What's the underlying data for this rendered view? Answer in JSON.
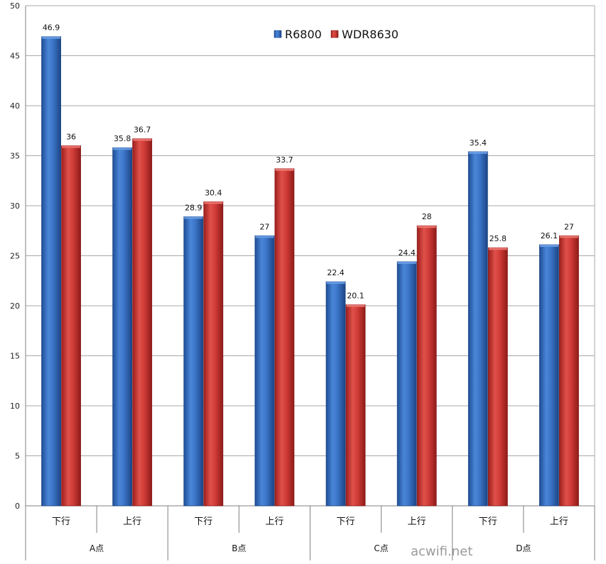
{
  "chart_data": {
    "type": "bar",
    "categories": [
      "下行",
      "上行",
      "下行",
      "上行",
      "下行",
      "上行",
      "下行",
      "上行"
    ],
    "groups": [
      "A点",
      "B点",
      "C点",
      "D点"
    ],
    "series": [
      {
        "name": "R6800",
        "values": [
          46.9,
          35.8,
          28.9,
          27,
          22.4,
          24.4,
          35.4,
          26.1
        ],
        "color": "#3a72c8"
      },
      {
        "name": "WDR8630",
        "values": [
          36,
          36.7,
          30.4,
          33.7,
          20.1,
          28,
          25.8,
          27
        ],
        "color": "#d03a36"
      }
    ],
    "data_labels": [
      [
        "46.9",
        "35.8",
        "28.9",
        "27",
        "22.4",
        "24.4",
        "35.4",
        "26.1"
      ],
      [
        "36",
        "36.7",
        "30.4",
        "33.7",
        "20.1",
        "28",
        "25.8",
        "27"
      ]
    ],
    "ylim": [
      0,
      50
    ],
    "yticks": [
      "0",
      "5",
      "10",
      "15",
      "20",
      "25",
      "30",
      "35",
      "40",
      "45",
      "50"
    ],
    "grid": true,
    "legend_position": "top-center"
  },
  "watermark": "acwifi.net"
}
